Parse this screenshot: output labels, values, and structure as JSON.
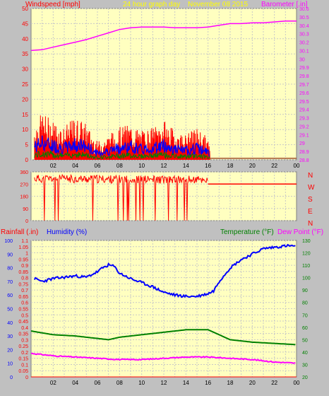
{
  "header": {
    "left_label": "Windspeed [mph]",
    "center_label": "24 hour graph day",
    "date_label": "November 08 2015",
    "right_label": "Barometer [.in]"
  },
  "colors": {
    "page_bg": "#c0c0c0",
    "plot_bg": "#ffffc0",
    "grid": "#c8c8c8",
    "wind": "#ff0000",
    "gust": "#0000ff",
    "wind_avg": "#008000",
    "barometer": "#ff00ff",
    "direction": "#ff0000",
    "humidity": "#0000ff",
    "temperature": "#008000",
    "dewpoint": "#ff00ff",
    "rainfall": "#ff0000",
    "header_yellow": "#ffff00"
  },
  "x_ticks": [
    "02",
    "04",
    "06",
    "08",
    "10",
    "12",
    "14",
    "16",
    "18",
    "20",
    "22",
    "00"
  ],
  "chart_data": [
    {
      "type": "line",
      "title": "24 hour graph day",
      "x": "hour of day",
      "series": [
        {
          "name": "Windspeed [mph]",
          "axis": "left",
          "x": [
            0.3,
            1,
            2,
            3,
            4,
            5,
            6,
            7,
            8,
            9,
            10,
            11,
            12,
            13,
            14,
            15,
            16,
            16.3,
            17,
            24
          ],
          "values": [
            10,
            13,
            11,
            9,
            12,
            10,
            5,
            7,
            9,
            10,
            8,
            9,
            11,
            8,
            7,
            9,
            6,
            0,
            0,
            0
          ]
        },
        {
          "name": "Barometer [.in]",
          "axis": "right",
          "x": [
            0,
            1,
            2,
            3,
            4,
            5,
            6,
            7,
            8,
            9,
            10,
            11,
            12,
            13,
            14,
            15,
            16,
            17,
            18,
            19,
            20,
            21,
            22,
            23,
            24
          ],
          "values": [
            30.1,
            30.11,
            30.14,
            30.17,
            30.2,
            30.23,
            30.27,
            30.31,
            30.35,
            30.37,
            30.38,
            30.38,
            30.38,
            30.37,
            30.37,
            30.37,
            30.38,
            30.4,
            30.42,
            30.42,
            30.43,
            30.43,
            30.44,
            30.45,
            30.45
          ]
        }
      ],
      "left_axis": {
        "label": "Windspeed [mph]",
        "ylim": [
          0,
          50
        ],
        "ticks": [
          0,
          5,
          10,
          15,
          20,
          25,
          30,
          35,
          40,
          45,
          50
        ]
      },
      "right_axis": {
        "label": "Barometer [.in]",
        "ylim": [
          28.8,
          30.6
        ],
        "ticks": [
          "28.8",
          "28.9",
          "29",
          "29.1",
          "29.2",
          "29.3",
          "29.4",
          "29.5",
          "29.6",
          "29.7",
          "29.8",
          "29.9",
          "30",
          "30.1",
          "30.2",
          "30.3",
          "30.4",
          "30.5",
          "30.6"
        ]
      }
    },
    {
      "type": "line",
      "series": [
        {
          "name": "Wind direction",
          "x": [
            0.3,
            16,
            16.1,
            24
          ],
          "values": [
            310,
            300,
            270,
            270
          ]
        }
      ],
      "left_axis": {
        "ylim": [
          0,
          360
        ],
        "ticks": [
          "0",
          "90",
          "180",
          "270",
          "360"
        ]
      },
      "right_labels": [
        "N",
        "W",
        "S",
        "E",
        "N"
      ]
    },
    {
      "type": "line",
      "series": [
        {
          "name": "Humidity (%)",
          "axis": "left",
          "x": [
            0.3,
            1,
            2,
            3,
            4,
            5,
            6,
            6.5,
            7,
            7.5,
            8,
            9,
            10,
            11,
            12,
            13,
            14,
            15,
            16,
            16.5,
            17,
            18,
            19,
            20,
            21,
            22,
            23,
            24
          ],
          "values": [
            72,
            70,
            72,
            73,
            74,
            73,
            77,
            80,
            82,
            81,
            76,
            72,
            69,
            66,
            62,
            60,
            59,
            59,
            61,
            63,
            70,
            80,
            86,
            90,
            94,
            95,
            96,
            96
          ]
        },
        {
          "name": "Temperature (°F)",
          "axis": "right",
          "x": [
            0,
            2,
            4,
            6,
            7,
            8,
            10,
            12,
            14,
            15,
            16,
            17,
            18,
            20,
            22,
            24
          ],
          "values": [
            57,
            54,
            53,
            51,
            50,
            52,
            54,
            56,
            58,
            58,
            58,
            54,
            50,
            48,
            47,
            46
          ]
        },
        {
          "name": "Dew Point (°F)",
          "axis": "right",
          "x": [
            0,
            2,
            4,
            6,
            8,
            10,
            12,
            14,
            16,
            18,
            20,
            22,
            24
          ],
          "values": [
            39,
            37,
            36,
            35,
            34,
            34,
            35,
            36,
            36,
            35,
            34,
            32,
            31
          ]
        },
        {
          "name": "Rainfall (.in)",
          "axis": "rain",
          "x": [
            0,
            24
          ],
          "values": [
            0,
            0
          ]
        }
      ],
      "humidity_axis": {
        "label": "Humidity (%)",
        "ylim": [
          0,
          100
        ],
        "ticks": [
          "0",
          "10",
          "20",
          "30",
          "40",
          "50",
          "60",
          "70",
          "80",
          "90",
          "100"
        ]
      },
      "rain_axis": {
        "label": "Rainfall (.in)",
        "ylim": [
          0,
          1.1
        ],
        "ticks": [
          "0",
          "0.05",
          "0.1",
          "0.15",
          "0.2",
          "0.25",
          "0.3",
          "0.35",
          "0.4",
          "0.45",
          "0.5",
          "0.55",
          "0.6",
          "0.65",
          "0.7",
          "0.75",
          "0.8",
          "0.85",
          "0.9",
          "0.95",
          "1",
          "1.05",
          "1.1"
        ]
      },
      "temp_axis": {
        "label": "Temperature (°F)",
        "label2": "Dew Point (°F)",
        "ylim": [
          20,
          130
        ],
        "ticks": [
          "20",
          "30",
          "40",
          "50",
          "60",
          "70",
          "80",
          "90",
          "100",
          "110",
          "120",
          "130"
        ]
      }
    }
  ]
}
